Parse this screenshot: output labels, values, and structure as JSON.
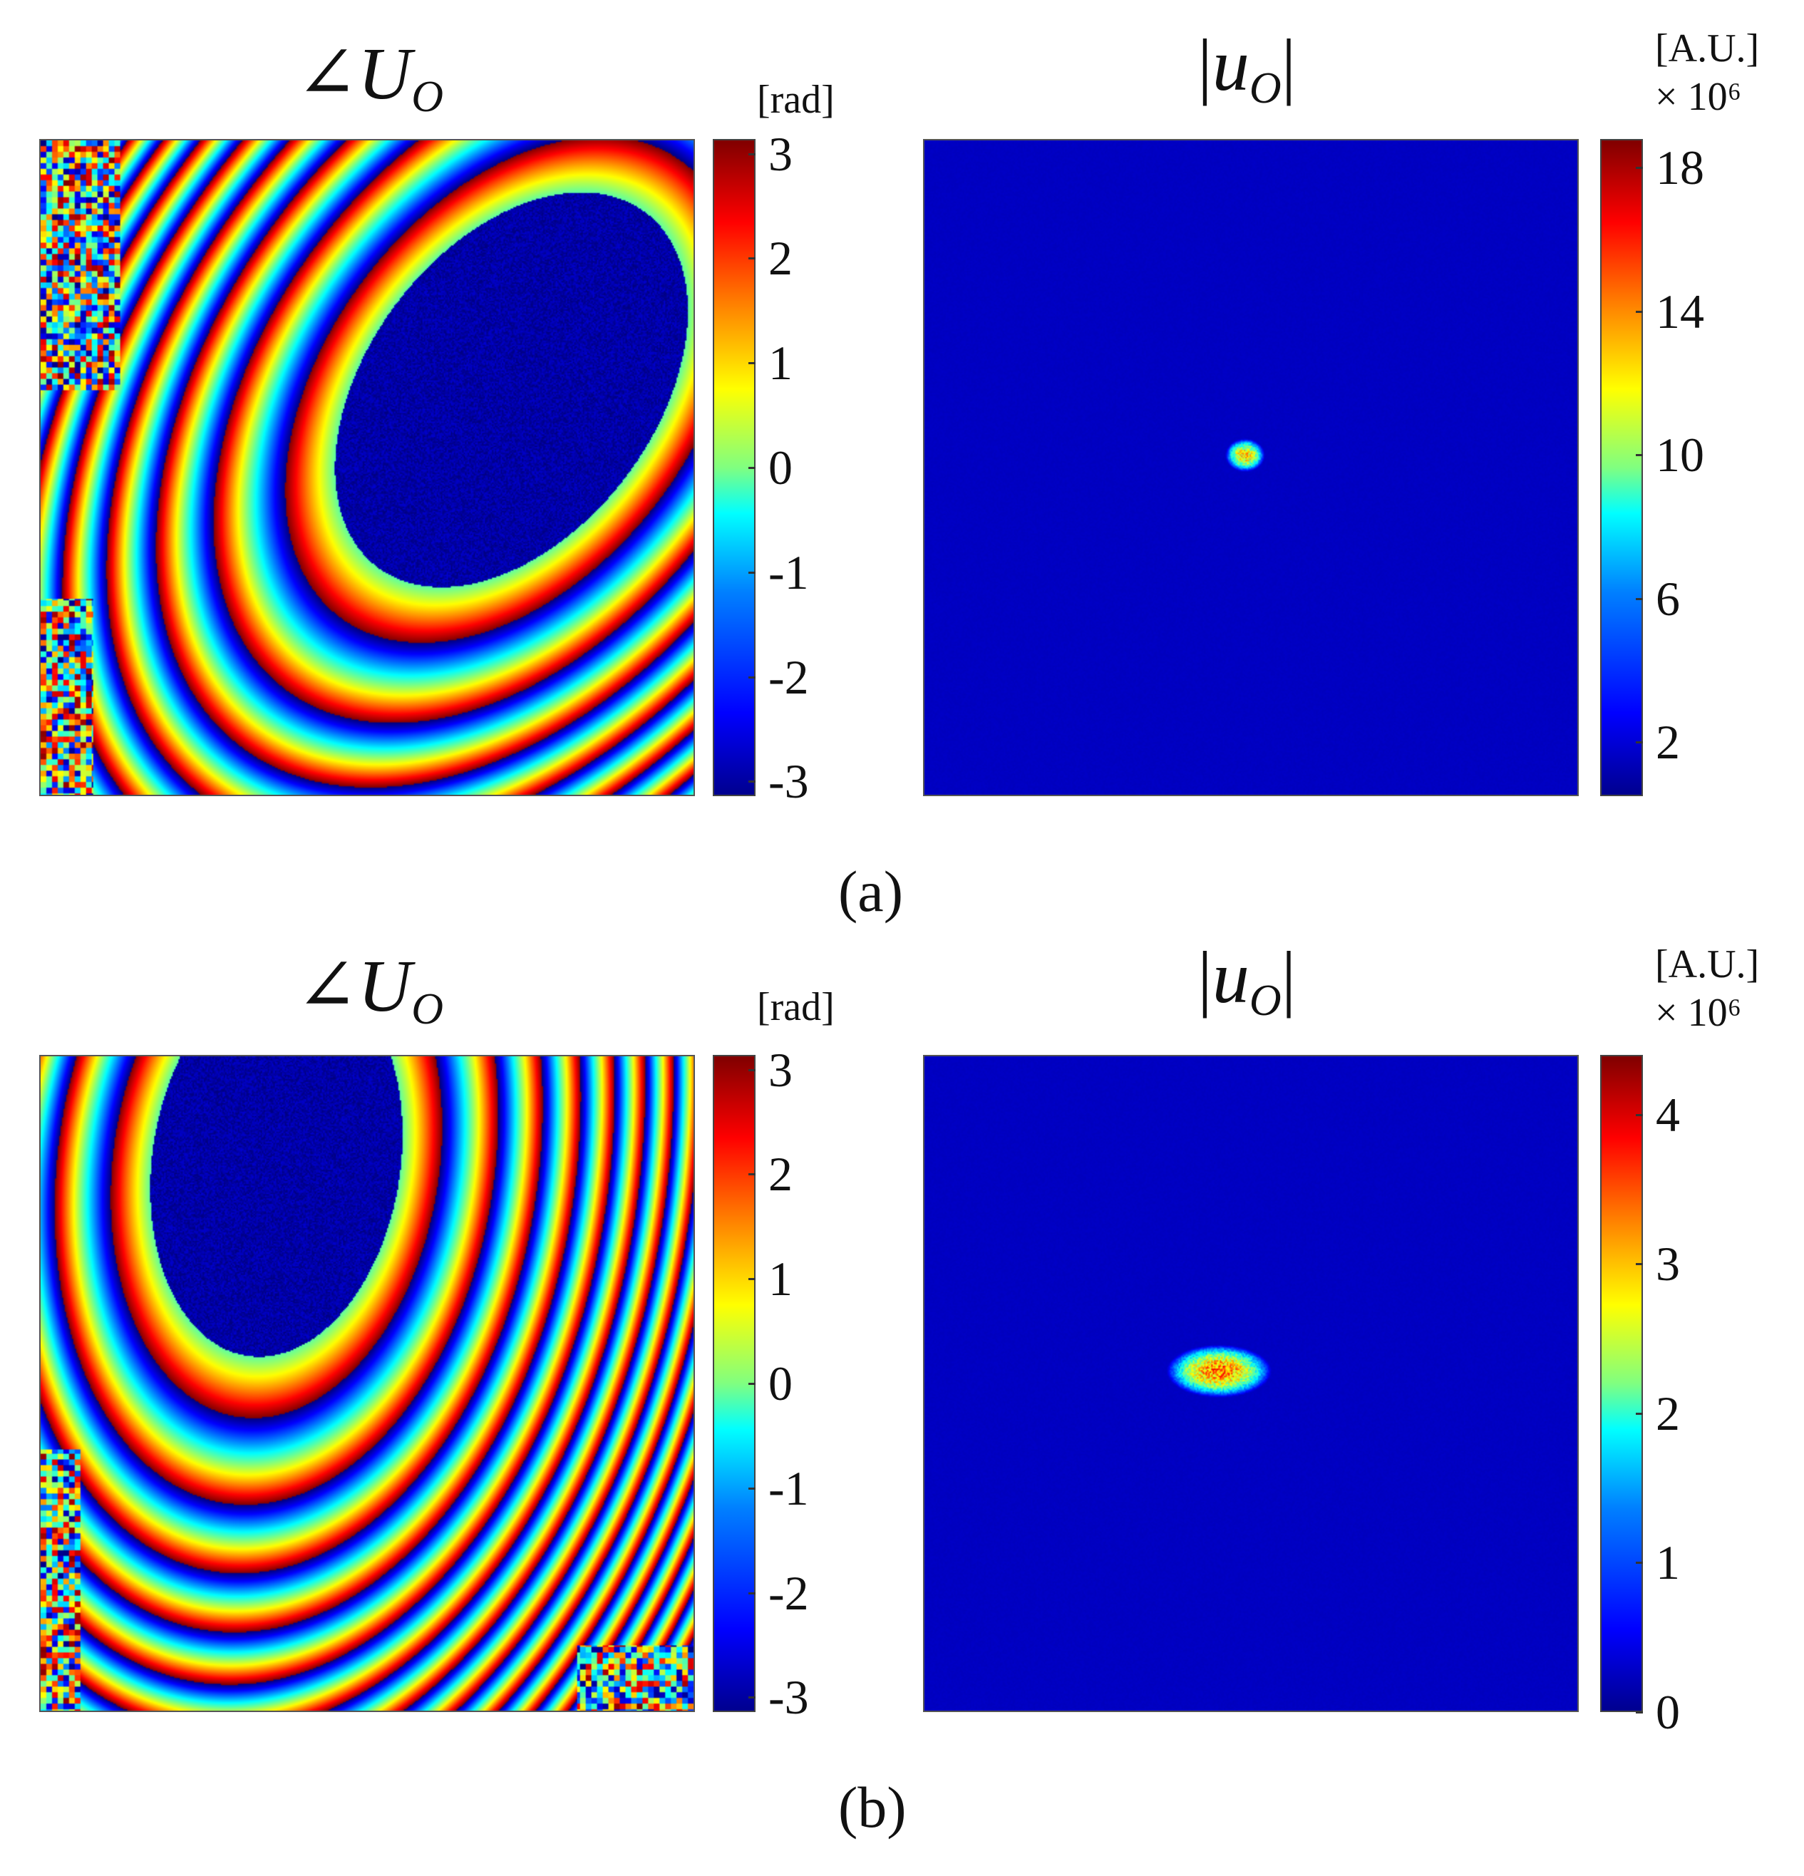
{
  "figure": {
    "rows": [
      {
        "label": "(a)",
        "phase": {
          "title_symbol": "∠",
          "title_var": "U",
          "title_sub": "O",
          "unit": "[rad]",
          "ticks": [
            "3",
            "2",
            "1",
            "0",
            "-1",
            "-2",
            "-3"
          ],
          "tick_values": [
            3,
            2,
            1,
            0,
            -1,
            -2,
            -3
          ],
          "range": [
            -3.14,
            3.14
          ]
        },
        "magnitude": {
          "title_var": "u",
          "title_sub": "O",
          "unit_line1": "[A.U.]",
          "unit_line2": "× 10⁶",
          "ticks": [
            "18",
            "14",
            "10",
            "6",
            "2"
          ],
          "tick_values": [
            18,
            14,
            10,
            6,
            2
          ],
          "range": [
            0.5,
            18.8
          ]
        }
      },
      {
        "label": "(b)",
        "phase": {
          "title_symbol": "∠",
          "title_var": "U",
          "title_sub": "O",
          "unit": "[rad]",
          "ticks": [
            "3",
            "2",
            "1",
            "0",
            "-1",
            "-2",
            "-3"
          ],
          "tick_values": [
            3,
            2,
            1,
            0,
            -1,
            -2,
            -3
          ],
          "range": [
            -3.14,
            3.14
          ]
        },
        "magnitude": {
          "title_var": "u",
          "title_sub": "O",
          "unit_line1": "[A.U.]",
          "unit_line2": "× 10⁶",
          "ticks": [
            "4",
            "3",
            "2",
            "1",
            "0"
          ],
          "tick_values": [
            4,
            3,
            2,
            1,
            0
          ],
          "range": [
            0,
            4.4
          ]
        }
      }
    ],
    "colormap": "jet"
  }
}
